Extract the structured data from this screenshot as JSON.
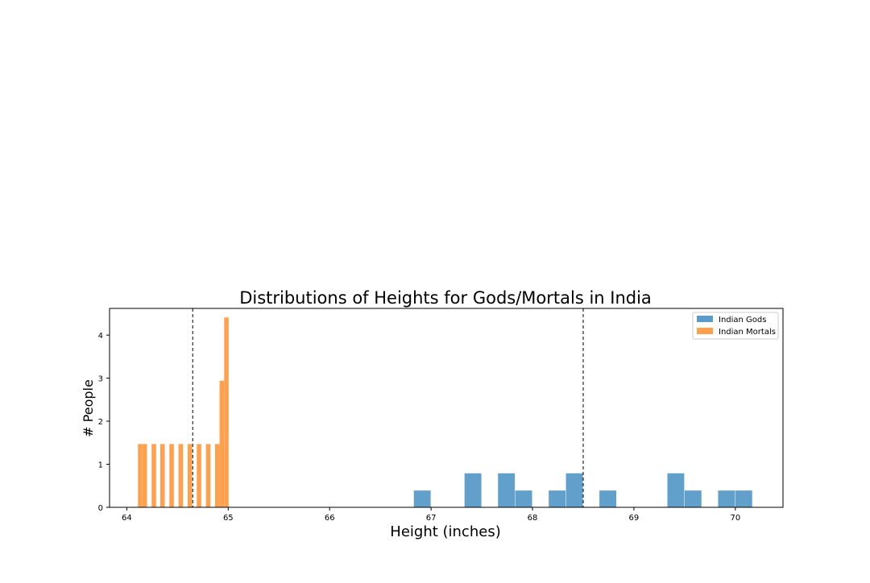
{
  "chart_data": {
    "type": "bar",
    "title": "Distributions of Heights for Gods/Mortals in India",
    "xlabel": "Height (inches)",
    "ylabel": "# People",
    "xlim": [
      63.83,
      70.47
    ],
    "ylim": [
      0,
      4.62
    ],
    "x_ticks": [
      64,
      65,
      66,
      67,
      68,
      69,
      70
    ],
    "y_ticks": [
      0,
      1,
      2,
      3,
      4
    ],
    "grid": false,
    "legend_position": "top-right",
    "bar_width_gods": 0.166,
    "bar_width_mortals": 0.044,
    "series": [
      {
        "name": "Indian Gods",
        "color": "#5a9bc9",
        "bins": [
          {
            "x": 66.83,
            "y": 0.39
          },
          {
            "x": 67.33,
            "y": 0.79
          },
          {
            "x": 67.66,
            "y": 0.79
          },
          {
            "x": 67.83,
            "y": 0.39
          },
          {
            "x": 68.16,
            "y": 0.39
          },
          {
            "x": 68.33,
            "y": 0.79
          },
          {
            "x": 68.66,
            "y": 0.39
          },
          {
            "x": 69.33,
            "y": 0.79
          },
          {
            "x": 69.5,
            "y": 0.39
          },
          {
            "x": 69.83,
            "y": 0.39
          },
          {
            "x": 70.0,
            "y": 0.39
          }
        ]
      },
      {
        "name": "Indian Mortals",
        "color": "#ffa04d",
        "bins": [
          {
            "x": 64.11,
            "y": 1.47
          },
          {
            "x": 64.155,
            "y": 1.47
          },
          {
            "x": 64.245,
            "y": 1.47
          },
          {
            "x": 64.33,
            "y": 1.47
          },
          {
            "x": 64.42,
            "y": 1.47
          },
          {
            "x": 64.51,
            "y": 1.47
          },
          {
            "x": 64.6,
            "y": 1.47
          },
          {
            "x": 64.69,
            "y": 1.47
          },
          {
            "x": 64.78,
            "y": 1.47
          },
          {
            "x": 64.87,
            "y": 1.47
          },
          {
            "x": 64.915,
            "y": 2.94
          },
          {
            "x": 64.96,
            "y": 4.41
          }
        ]
      }
    ],
    "reference_lines": [
      64.65,
      68.5
    ]
  }
}
